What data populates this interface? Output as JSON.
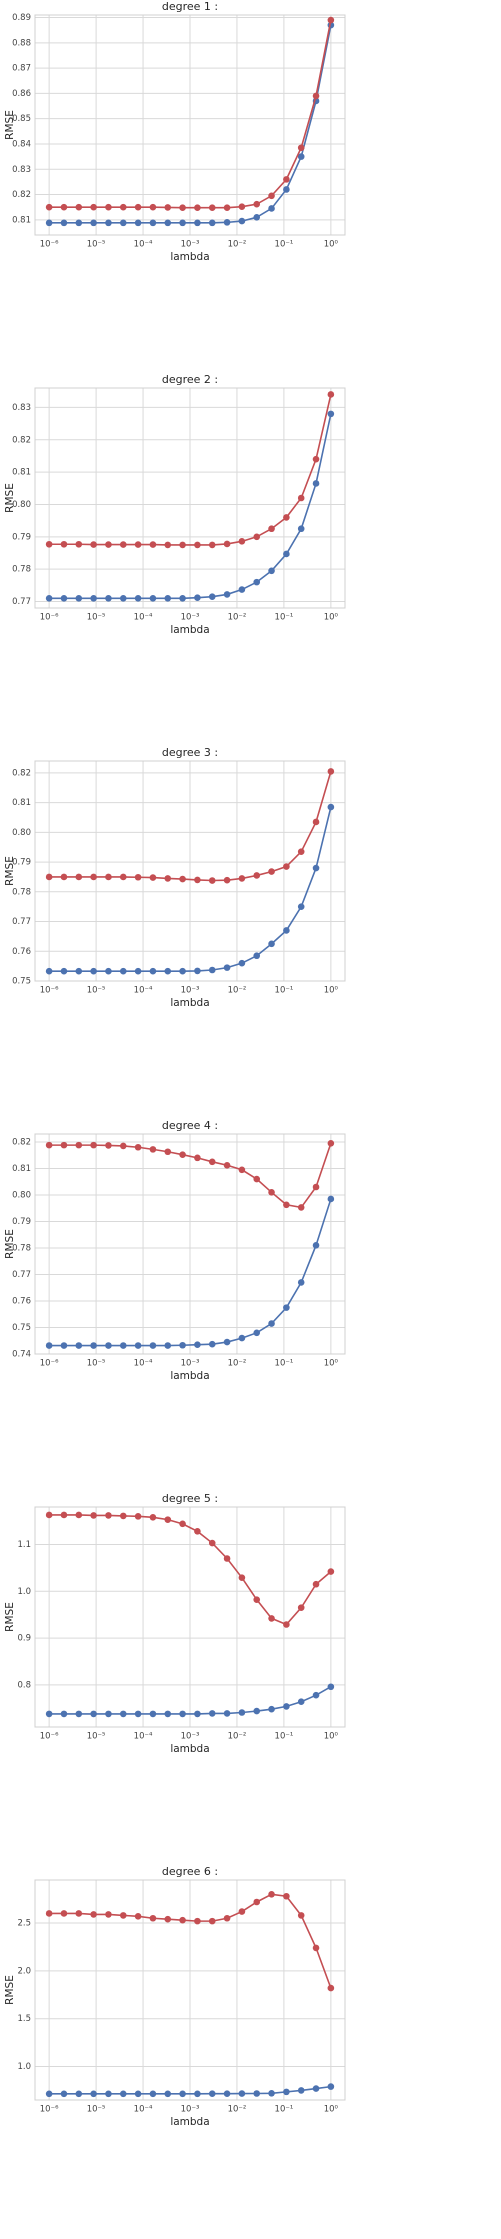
{
  "chart_data": [
    {
      "type": "line",
      "title": "degree 1 :",
      "x_label": "lambda",
      "y_label": "RMSE",
      "xscale": "log",
      "grid": true,
      "x": [
        1e-06,
        2.0691e-06,
        4.2813e-06,
        8.8587e-06,
        1.833e-05,
        3.7927e-05,
        7.8476e-05,
        0.00016238,
        0.00033598,
        0.00069519,
        0.0014384,
        0.0029764,
        0.0061585,
        0.012743,
        0.026367,
        0.054556,
        0.11288,
        0.23357,
        0.48329,
        1
      ],
      "series": [
        {
          "color": "#4c72b0",
          "values": [
            0.8088,
            0.8088,
            0.8088,
            0.8088,
            0.8088,
            0.8088,
            0.8088,
            0.8088,
            0.8088,
            0.8088,
            0.8088,
            0.8088,
            0.809,
            0.8095,
            0.811,
            0.8145,
            0.822,
            0.835,
            0.857,
            0.887
          ]
        },
        {
          "color": "#c44e52",
          "values": [
            0.815,
            0.815,
            0.815,
            0.815,
            0.815,
            0.815,
            0.815,
            0.815,
            0.8149,
            0.8148,
            0.8148,
            0.8148,
            0.8148,
            0.8152,
            0.8162,
            0.8195,
            0.826,
            0.8385,
            0.859,
            0.889
          ]
        }
      ],
      "xlim": [
        5e-07,
        2
      ],
      "ylim": [
        0.804,
        0.891
      ],
      "xticks": [
        {
          "value": 1e-06,
          "label": "10⁻⁶"
        },
        {
          "value": 1e-05,
          "label": "10⁻⁵"
        },
        {
          "value": 0.0001,
          "label": "10⁻⁴"
        },
        {
          "value": 0.001,
          "label": "10⁻³"
        },
        {
          "value": 0.01,
          "label": "10⁻²"
        },
        {
          "value": 0.1,
          "label": "10⁻¹"
        },
        {
          "value": 1,
          "label": "10⁰"
        }
      ],
      "yticks": [
        0.81,
        0.82,
        0.83,
        0.84,
        0.85,
        0.86,
        0.87,
        0.88,
        0.89
      ]
    },
    {
      "type": "line",
      "title": "degree 2 :",
      "x_label": "lambda",
      "y_label": "RMSE",
      "xscale": "log",
      "grid": true,
      "x": [
        1e-06,
        2.0691e-06,
        4.2813e-06,
        8.8587e-06,
        1.833e-05,
        3.7927e-05,
        7.8476e-05,
        0.00016238,
        0.00033598,
        0.00069519,
        0.0014384,
        0.0029764,
        0.0061585,
        0.012743,
        0.026367,
        0.054556,
        0.11288,
        0.23357,
        0.48329,
        1
      ],
      "series": [
        {
          "color": "#4c72b0",
          "values": [
            0.771,
            0.771,
            0.771,
            0.771,
            0.771,
            0.771,
            0.771,
            0.771,
            0.771,
            0.771,
            0.7712,
            0.7715,
            0.7722,
            0.7737,
            0.776,
            0.7795,
            0.7847,
            0.7925,
            0.8065,
            0.828
          ]
        },
        {
          "color": "#c44e52",
          "values": [
            0.7877,
            0.7877,
            0.7877,
            0.7876,
            0.7876,
            0.7876,
            0.7876,
            0.7876,
            0.7875,
            0.7875,
            0.7875,
            0.7875,
            0.7878,
            0.7886,
            0.79,
            0.7925,
            0.796,
            0.802,
            0.814,
            0.834
          ]
        }
      ],
      "xlim": [
        5e-07,
        2
      ],
      "ylim": [
        0.768,
        0.836
      ],
      "xticks": [
        {
          "value": 1e-06,
          "label": "10⁻⁶"
        },
        {
          "value": 1e-05,
          "label": "10⁻⁵"
        },
        {
          "value": 0.0001,
          "label": "10⁻⁴"
        },
        {
          "value": 0.001,
          "label": "10⁻³"
        },
        {
          "value": 0.01,
          "label": "10⁻²"
        },
        {
          "value": 0.1,
          "label": "10⁻¹"
        },
        {
          "value": 1,
          "label": "10⁰"
        }
      ],
      "yticks": [
        0.77,
        0.78,
        0.79,
        {
          "value": 0.8,
          "label": "0.80"
        },
        0.81,
        0.82,
        0.83
      ]
    },
    {
      "type": "line",
      "title": "degree 3 :",
      "x_label": "lambda",
      "y_label": "RMSE",
      "xscale": "log",
      "grid": true,
      "x": [
        1e-06,
        2.0691e-06,
        4.2813e-06,
        8.8587e-06,
        1.833e-05,
        3.7927e-05,
        7.8476e-05,
        0.00016238,
        0.00033598,
        0.00069519,
        0.0014384,
        0.0029764,
        0.0061585,
        0.012743,
        0.026367,
        0.054556,
        0.11288,
        0.23357,
        0.48329,
        1
      ],
      "series": [
        {
          "color": "#4c72b0",
          "values": [
            0.7533,
            0.7533,
            0.7533,
            0.7533,
            0.7533,
            0.7533,
            0.7533,
            0.7533,
            0.7533,
            0.7533,
            0.7534,
            0.7537,
            0.7545,
            0.756,
            0.7585,
            0.7625,
            0.767,
            0.775,
            0.788,
            0.8085
          ]
        },
        {
          "color": "#c44e52",
          "values": [
            0.785,
            0.785,
            0.785,
            0.785,
            0.785,
            0.785,
            0.7849,
            0.7848,
            0.7845,
            0.7843,
            0.784,
            0.7838,
            0.7839,
            0.7845,
            0.7855,
            0.7868,
            0.7885,
            0.7935,
            0.8035,
            0.8205
          ]
        }
      ],
      "xlim": [
        5e-07,
        2
      ],
      "ylim": [
        0.75,
        0.824
      ],
      "xticks": [
        {
          "value": 1e-06,
          "label": "10⁻⁶"
        },
        {
          "value": 1e-05,
          "label": "10⁻⁵"
        },
        {
          "value": 0.0001,
          "label": "10⁻⁴"
        },
        {
          "value": 0.001,
          "label": "10⁻³"
        },
        {
          "value": 0.01,
          "label": "10⁻²"
        },
        {
          "value": 0.1,
          "label": "10⁻¹"
        },
        {
          "value": 1,
          "label": "10⁰"
        }
      ],
      "yticks": [
        0.75,
        0.76,
        0.77,
        0.78,
        0.79,
        {
          "value": 0.8,
          "label": "0.80"
        },
        0.81,
        0.82
      ]
    },
    {
      "type": "line",
      "title": "degree 4 :",
      "x_label": "lambda",
      "y_label": "RMSE",
      "xscale": "log",
      "grid": true,
      "x": [
        1e-06,
        2.0691e-06,
        4.2813e-06,
        8.8587e-06,
        1.833e-05,
        3.7927e-05,
        7.8476e-05,
        0.00016238,
        0.00033598,
        0.00069519,
        0.0014384,
        0.0029764,
        0.0061585,
        0.012743,
        0.026367,
        0.054556,
        0.11288,
        0.23357,
        0.48329,
        1
      ],
      "series": [
        {
          "color": "#4c72b0",
          "values": [
            0.7432,
            0.7432,
            0.7432,
            0.7432,
            0.7432,
            0.7432,
            0.7432,
            0.7432,
            0.7432,
            0.7433,
            0.7435,
            0.7437,
            0.7445,
            0.746,
            0.748,
            0.7515,
            0.7575,
            0.767,
            0.781,
            0.7985
          ]
        },
        {
          "color": "#c44e52",
          "values": [
            0.8188,
            0.8188,
            0.8188,
            0.8188,
            0.8187,
            0.8185,
            0.818,
            0.8172,
            0.8163,
            0.8152,
            0.814,
            0.8125,
            0.8112,
            0.8095,
            0.806,
            0.801,
            0.7963,
            0.7953,
            0.803,
            0.8195
          ]
        }
      ],
      "xlim": [
        5e-07,
        2
      ],
      "ylim": [
        0.74,
        0.823
      ],
      "xticks": [
        {
          "value": 1e-06,
          "label": "10⁻⁶"
        },
        {
          "value": 1e-05,
          "label": "10⁻⁵"
        },
        {
          "value": 0.0001,
          "label": "10⁻⁴"
        },
        {
          "value": 0.001,
          "label": "10⁻³"
        },
        {
          "value": 0.01,
          "label": "10⁻²"
        },
        {
          "value": 0.1,
          "label": "10⁻¹"
        },
        {
          "value": 1,
          "label": "10⁰"
        }
      ],
      "yticks": [
        0.74,
        0.75,
        0.76,
        0.77,
        0.78,
        0.79,
        {
          "value": 0.8,
          "label": "0.80"
        },
        0.81,
        0.82
      ]
    },
    {
      "type": "line",
      "title": "degree 5 :",
      "x_label": "lambda",
      "y_label": "RMSE",
      "xscale": "log",
      "grid": true,
      "x": [
        1e-06,
        2.0691e-06,
        4.2813e-06,
        8.8587e-06,
        1.833e-05,
        3.7927e-05,
        7.8476e-05,
        0.00016238,
        0.00033598,
        0.00069519,
        0.0014384,
        0.0029764,
        0.0061585,
        0.012743,
        0.026367,
        0.054556,
        0.11288,
        0.23357,
        0.48329,
        1
      ],
      "series": [
        {
          "color": "#4c72b0",
          "values": [
            0.738,
            0.738,
            0.738,
            0.738,
            0.738,
            0.738,
            0.738,
            0.738,
            0.738,
            0.738,
            0.738,
            0.739,
            0.739,
            0.741,
            0.744,
            0.748,
            0.754,
            0.764,
            0.778,
            0.796
          ]
        },
        {
          "color": "#c44e52",
          "values": [
            1.163,
            1.163,
            1.163,
            1.162,
            1.162,
            1.161,
            1.16,
            1.158,
            1.153,
            1.144,
            1.128,
            1.103,
            1.07,
            1.029,
            0.982,
            0.942,
            0.929,
            0.965,
            1.015,
            1.042
          ]
        }
      ],
      "xlim": [
        5e-07,
        2
      ],
      "ylim": [
        0.71,
        1.18
      ],
      "xticks": [
        {
          "value": 1e-06,
          "label": "10⁻⁶"
        },
        {
          "value": 1e-05,
          "label": "10⁻⁵"
        },
        {
          "value": 0.0001,
          "label": "10⁻⁴"
        },
        {
          "value": 0.001,
          "label": "10⁻³"
        },
        {
          "value": 0.01,
          "label": "10⁻²"
        },
        {
          "value": 0.1,
          "label": "10⁻¹"
        },
        {
          "value": 1,
          "label": "10⁰"
        }
      ],
      "yticks": [
        0.8,
        0.9,
        {
          "value": 1,
          "label": "1.0"
        },
        1.1
      ]
    },
    {
      "type": "line",
      "title": "degree 6 :",
      "x_label": "lambda",
      "y_label": "RMSE",
      "xscale": "log",
      "grid": true,
      "x": [
        1e-06,
        2.0691e-06,
        4.2813e-06,
        8.8587e-06,
        1.833e-05,
        3.7927e-05,
        7.8476e-05,
        0.00016238,
        0.00033598,
        0.00069519,
        0.0014384,
        0.0029764,
        0.0061585,
        0.012743,
        0.026367,
        0.054556,
        0.11288,
        0.23357,
        0.48329,
        1
      ],
      "series": [
        {
          "color": "#4c72b0",
          "values": [
            0.715,
            0.715,
            0.715,
            0.715,
            0.715,
            0.715,
            0.715,
            0.715,
            0.715,
            0.715,
            0.715,
            0.716,
            0.716,
            0.717,
            0.718,
            0.72,
            0.735,
            0.75,
            0.77,
            0.79
          ]
        },
        {
          "color": "#c44e52",
          "values": [
            2.6,
            2.6,
            2.6,
            2.59,
            2.59,
            2.58,
            2.57,
            2.55,
            2.54,
            2.53,
            2.52,
            2.52,
            2.55,
            2.62,
            2.72,
            2.8,
            2.78,
            2.58,
            2.24,
            1.82
          ]
        }
      ],
      "xlim": [
        5e-07,
        2
      ],
      "ylim": [
        0.65,
        2.95
      ],
      "xticks": [
        {
          "value": 1e-06,
          "label": "10⁻⁶"
        },
        {
          "value": 1e-05,
          "label": "10⁻⁵"
        },
        {
          "value": 0.0001,
          "label": "10⁻⁴"
        },
        {
          "value": 0.001,
          "label": "10⁻³"
        },
        {
          "value": 0.01,
          "label": "10⁻²"
        },
        {
          "value": 0.1,
          "label": "10⁻¹"
        },
        {
          "value": 1,
          "label": "10⁰"
        }
      ],
      "yticks": [
        {
          "value": 1,
          "label": "1.0"
        },
        1.5,
        {
          "value": 2,
          "label": "2.0"
        },
        2.5
      ]
    }
  ]
}
